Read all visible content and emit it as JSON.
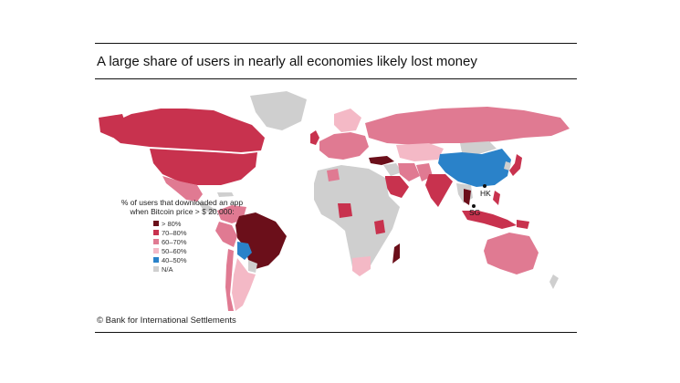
{
  "title": "A large share of users in nearly all economies likely lost money",
  "credit": "© Bank for International Settlements",
  "legend": {
    "title": "% of users that downloaded an app when Bitcoin price > $ 20,000:",
    "items": [
      {
        "label": "> 80%",
        "color": "#6b0f1a"
      },
      {
        "label": "70–80%",
        "color": "#c8324e"
      },
      {
        "label": "60–70%",
        "color": "#e07a92"
      },
      {
        "label": "50–60%",
        "color": "#f4b9c6"
      },
      {
        "label": "40–50%",
        "color": "#2a82c9"
      },
      {
        "label": "N/A",
        "color": "#cfcfcf"
      }
    ]
  },
  "labels": {
    "hk": "HK",
    "sg": "SG"
  },
  "regions": {
    "canada": "70–80%",
    "usa": "70–80%",
    "mexico": "60–70%",
    "brazil": "> 80%",
    "colombia": "60–70%",
    "peru": "60–70%",
    "bolivia": "40–50%",
    "argentina": "50–60%",
    "chile": "60–70%",
    "greenland": "N/A",
    "uk": "70–80%",
    "europe": "60–70%",
    "russia": "60–70%",
    "kazakhstan": "50–60%",
    "china": "40–50%",
    "mongolia": "N/A",
    "japan": "70–80%",
    "india": "70–80%",
    "pakistan": "60–70%",
    "iran": "60–70%",
    "saudi_arabia": "70–80%",
    "turkey": "> 80%",
    "thailand": "> 80%",
    "indonesia": "70–80%",
    "philippines": "70–80%",
    "australia": "60–70%",
    "nigeria": "70–80%",
    "kenya": "70–80%",
    "madagascar": "> 80%",
    "south_africa": "50–60%",
    "africa_rest": "N/A"
  }
}
